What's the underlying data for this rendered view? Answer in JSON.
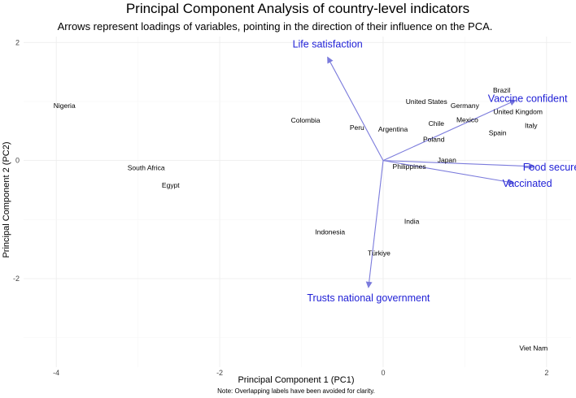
{
  "chart_data": {
    "type": "scatter",
    "title": "Principal Component Analysis of country-level indicators",
    "subtitle": "Arrows represent loadings of variables, pointing in the direction of their influence on the PCA.",
    "xlabel": "Principal Component 1 (PC1)",
    "ylabel": "Principal Component 2 (PC2)",
    "caption": "Note: Overlapping labels have been avoided for clarity.",
    "xlim": [
      -4.4,
      2.3
    ],
    "ylim": [
      -3.5,
      2.1
    ],
    "x_ticks": [
      -4,
      -2,
      0,
      2
    ],
    "y_ticks": [
      -2,
      0,
      2
    ],
    "grid": true,
    "points": [
      {
        "label": "Nigeria",
        "x": -3.9,
        "y": 0.93
      },
      {
        "label": "South Africa",
        "x": -2.9,
        "y": -0.12
      },
      {
        "label": "Egypt",
        "x": -2.6,
        "y": -0.42
      },
      {
        "label": "Colombia",
        "x": -0.95,
        "y": 0.68
      },
      {
        "label": "Peru",
        "x": -0.32,
        "y": 0.56
      },
      {
        "label": "Argentina",
        "x": 0.12,
        "y": 0.53
      },
      {
        "label": "United States",
        "x": 0.53,
        "y": 1.0
      },
      {
        "label": "Germany",
        "x": 1.0,
        "y": 0.93
      },
      {
        "label": "Brazil",
        "x": 1.45,
        "y": 1.19
      },
      {
        "label": "Chile",
        "x": 0.65,
        "y": 0.63
      },
      {
        "label": "Mexico",
        "x": 1.03,
        "y": 0.69
      },
      {
        "label": "United Kingdom",
        "x": 1.65,
        "y": 0.83
      },
      {
        "label": "Italy",
        "x": 1.81,
        "y": 0.59
      },
      {
        "label": "Spain",
        "x": 1.4,
        "y": 0.47
      },
      {
        "label": "Poland",
        "x": 0.62,
        "y": 0.36
      },
      {
        "label": "Japan",
        "x": 0.78,
        "y": 0.01
      },
      {
        "label": "Philippines",
        "x": 0.32,
        "y": -0.1
      },
      {
        "label": "India",
        "x": 0.35,
        "y": -1.03
      },
      {
        "label": "Indonesia",
        "x": -0.65,
        "y": -1.21
      },
      {
        "label": "Türkiye",
        "x": -0.05,
        "y": -1.57
      },
      {
        "label": "Viet Nam",
        "x": 1.84,
        "y": -3.18
      }
    ],
    "loadings": [
      {
        "label": "Life satisfaction",
        "x": -0.68,
        "y": 1.75
      },
      {
        "label": "Vaccine confident",
        "x": 1.62,
        "y": 1.02
      },
      {
        "label": "Food secure",
        "x": 1.85,
        "y": -0.1
      },
      {
        "label": "Vaccinated",
        "x": 1.6,
        "y": -0.38
      },
      {
        "label": "Trusts national government",
        "x": -0.18,
        "y": -2.15
      }
    ],
    "arrow_color": "#7b7bdc",
    "loading_label_color": "#1f1fd6"
  }
}
